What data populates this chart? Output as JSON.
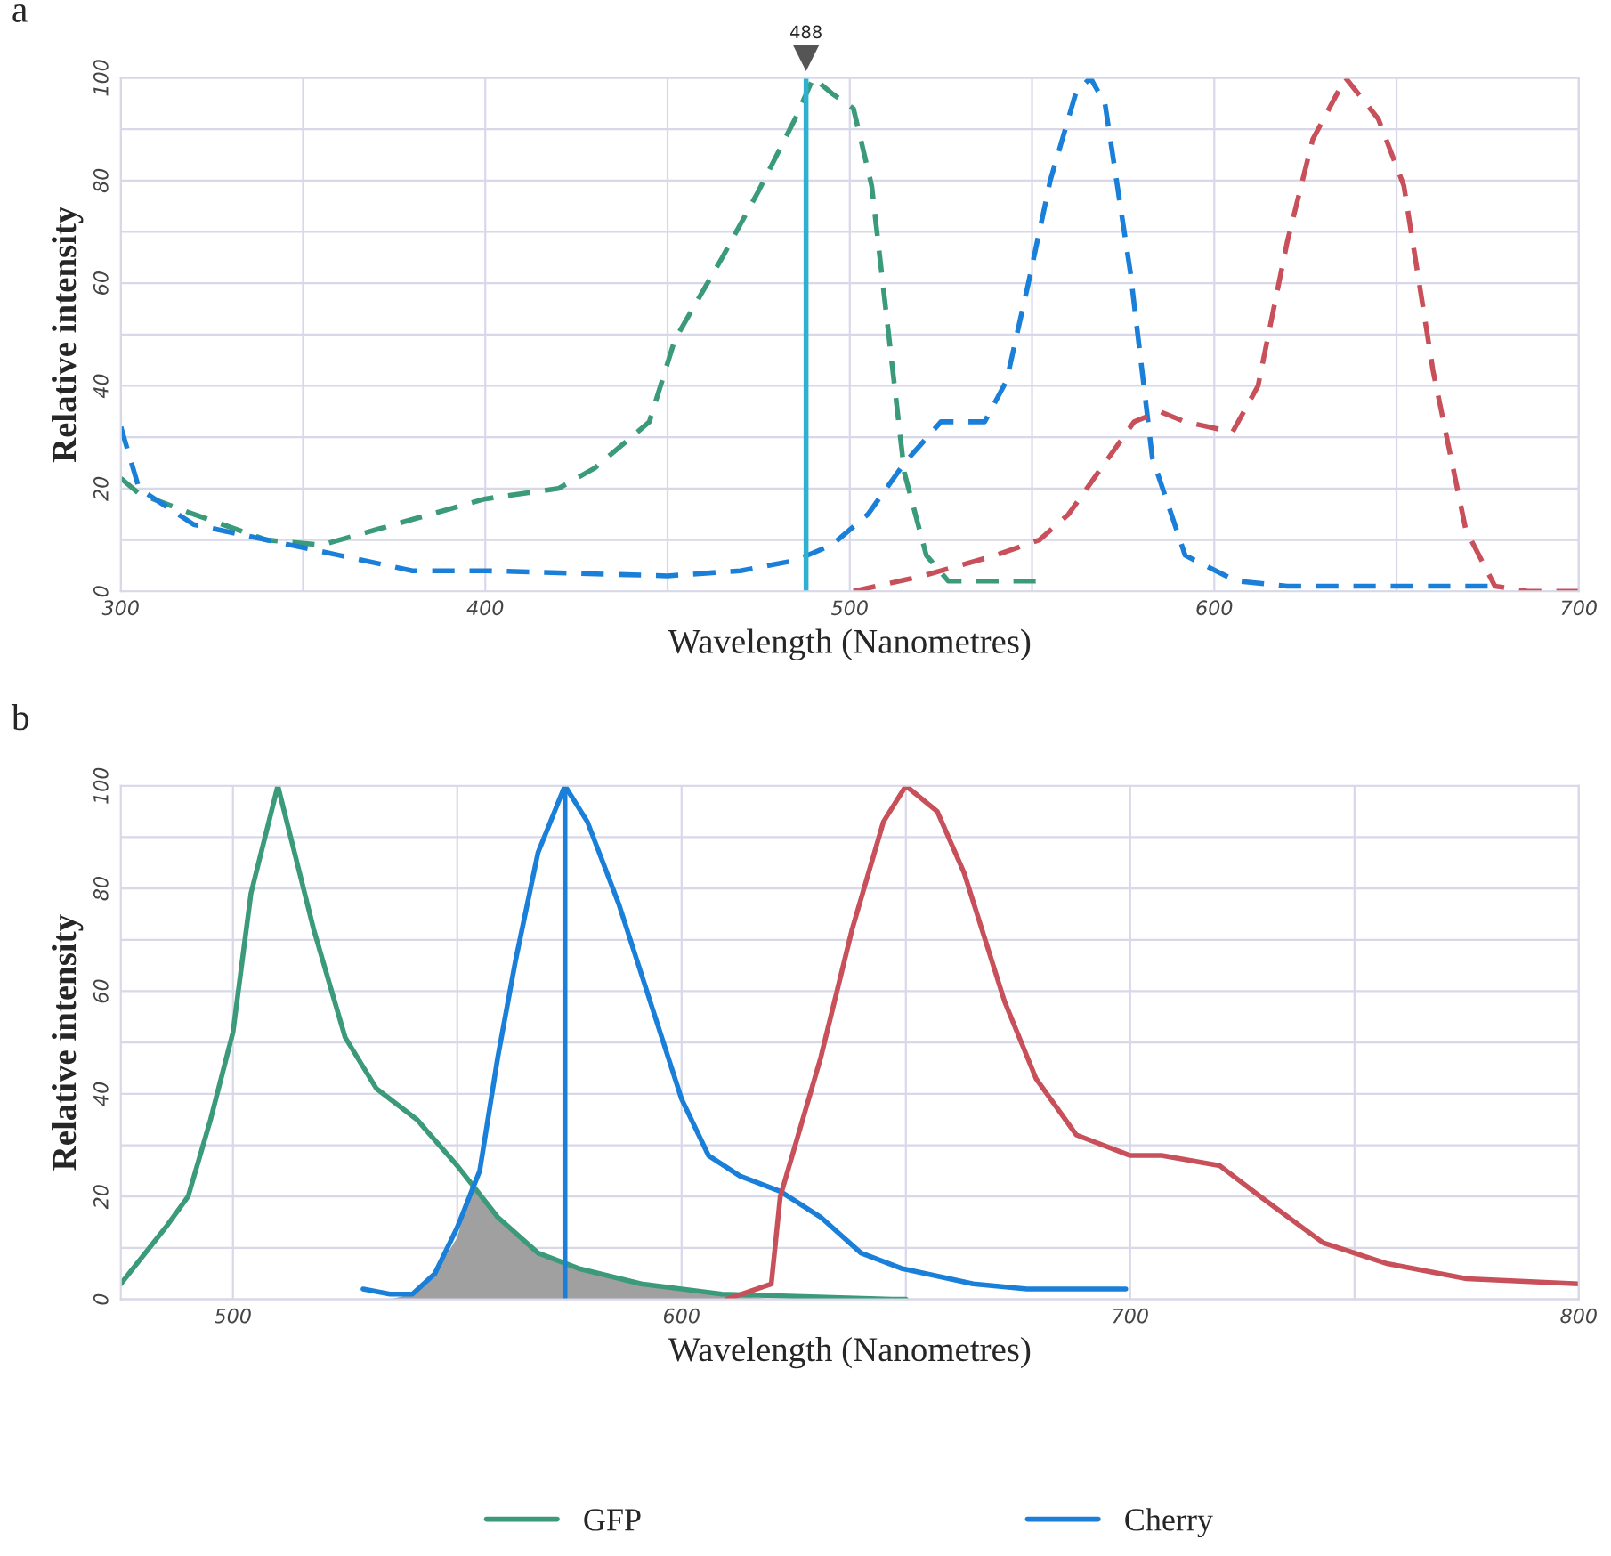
{
  "chart_data": [
    {
      "type": "line",
      "title": "a",
      "xlabel": "Wavelength (Nanometres)",
      "ylabel": "Relative intensity",
      "xlim": [
        300,
        700
      ],
      "ylim": [
        0,
        100
      ],
      "xticks": [
        300,
        {
          "value": 350,
          "label": null
        },
        400,
        {
          "value": 450,
          "label": null
        },
        500,
        {
          "value": 550,
          "label": null
        },
        600,
        {
          "value": 650,
          "label": null
        },
        700
      ],
      "yticks": [
        0,
        {
          "value": 10,
          "label": null
        },
        20,
        {
          "value": 30,
          "label": null
        },
        40,
        {
          "value": 50,
          "label": null
        },
        60,
        {
          "value": 70,
          "label": null
        },
        80,
        {
          "value": 90,
          "label": null
        },
        100
      ],
      "grid": true,
      "line_style": "dashed",
      "legend": false,
      "ref_lines": [
        {
          "axis": "x",
          "value": 488,
          "label": "488",
          "color": "#30b0d0"
        }
      ],
      "series": [
        {
          "color": "#3a9a7a",
          "x": [
            300,
            305,
            320,
            340,
            355,
            370,
            400,
            420,
            430,
            445,
            452,
            465,
            475,
            485,
            490,
            495,
            501,
            506,
            515,
            521,
            527,
            551
          ],
          "values": [
            22,
            19,
            15,
            10,
            9,
            12,
            18,
            20,
            24,
            33,
            49,
            65,
            78,
            92,
            100,
            97,
            94,
            79,
            23,
            7,
            2,
            2
          ]
        },
        {
          "color": "#1a7fd8",
          "x": [
            300,
            305,
            320,
            340,
            360,
            380,
            400,
            450,
            470,
            485,
            495,
            505,
            515,
            525,
            537,
            543,
            549,
            555,
            562,
            566,
            570,
            577,
            583,
            592,
            606,
            620,
            675
          ],
          "values": [
            32,
            20,
            13,
            10,
            7,
            4,
            4,
            3,
            4,
            6,
            9,
            15,
            25,
            33,
            33,
            41,
            60,
            80,
            97,
            100,
            95,
            62,
            26,
            7,
            2,
            1,
            1
          ]
        },
        {
          "color": "#c8505a",
          "x": [
            501,
            520,
            540,
            552,
            560,
            570,
            578,
            585,
            592,
            605,
            612,
            620,
            627,
            636,
            645,
            652,
            660,
            669,
            677,
            686,
            700
          ],
          "values": [
            0,
            3,
            7,
            10,
            15,
            25,
            33,
            35,
            33,
            31,
            40,
            68,
            88,
            100,
            92,
            79,
            43,
            12,
            1,
            0,
            0
          ]
        }
      ]
    },
    {
      "type": "line",
      "title": "b",
      "xlabel": "Wavelength (Nanometres)",
      "ylabel": "Relative intensity",
      "xlim": [
        475,
        800
      ],
      "ylim": [
        0,
        100
      ],
      "xticks": [
        500,
        {
          "value": 550,
          "label": null
        },
        600,
        {
          "value": 650,
          "label": null
        },
        700,
        {
          "value": 750,
          "label": null
        },
        800
      ],
      "yticks": [
        0,
        {
          "value": 10,
          "label": null
        },
        20,
        {
          "value": 30,
          "label": null
        },
        40,
        {
          "value": 50,
          "label": null
        },
        60,
        {
          "value": 70,
          "label": null
        },
        80,
        {
          "value": 90,
          "label": null
        },
        100
      ],
      "grid": true,
      "line_style": "solid",
      "legend": "bottom",
      "ref_lines": [
        {
          "axis": "x",
          "value": 574,
          "color": "#1a7fd8"
        }
      ],
      "series": [
        {
          "type": "area",
          "color": "#a0a0a0",
          "x": [
            535,
            540,
            545,
            550,
            553,
            559,
            568,
            577,
            591,
            609,
            620
          ],
          "values": [
            0,
            1,
            5,
            12,
            22,
            16,
            9,
            6,
            3,
            1,
            0
          ]
        },
        {
          "name": "GFP",
          "color": "#3a9a7a",
          "x": [
            475,
            485,
            490,
            495,
            500,
            504,
            510,
            518,
            525,
            532,
            541,
            550,
            559,
            568,
            577,
            591,
            609,
            647,
            650
          ],
          "values": [
            3,
            14,
            20,
            35,
            52,
            79,
            100,
            72,
            51,
            41,
            35,
            26,
            16,
            9,
            6,
            3,
            1,
            0,
            0
          ]
        },
        {
          "name": "Cherry",
          "color": "#1a7fd8",
          "x": [
            529,
            535,
            540,
            545,
            550,
            555,
            559,
            563,
            568,
            574,
            579,
            586,
            593,
            600,
            606,
            613,
            622,
            631,
            640,
            649,
            665,
            677,
            699
          ],
          "values": [
            2,
            1,
            1,
            5,
            14,
            25,
            47,
            66,
            87,
            100,
            93,
            77,
            58,
            39,
            28,
            24,
            21,
            16,
            9,
            6,
            3,
            2,
            2
          ]
        },
        {
          "color": "#c8505a",
          "x": [
            610,
            620,
            622,
            631,
            638,
            645,
            650,
            657,
            663,
            672,
            679,
            688,
            700,
            707,
            720,
            729,
            743,
            757,
            775,
            800
          ],
          "values": [
            0,
            3,
            20,
            47,
            72,
            93,
            100,
            95,
            83,
            58,
            43,
            32,
            28,
            28,
            26,
            20,
            11,
            7,
            4,
            3
          ]
        }
      ]
    }
  ]
}
